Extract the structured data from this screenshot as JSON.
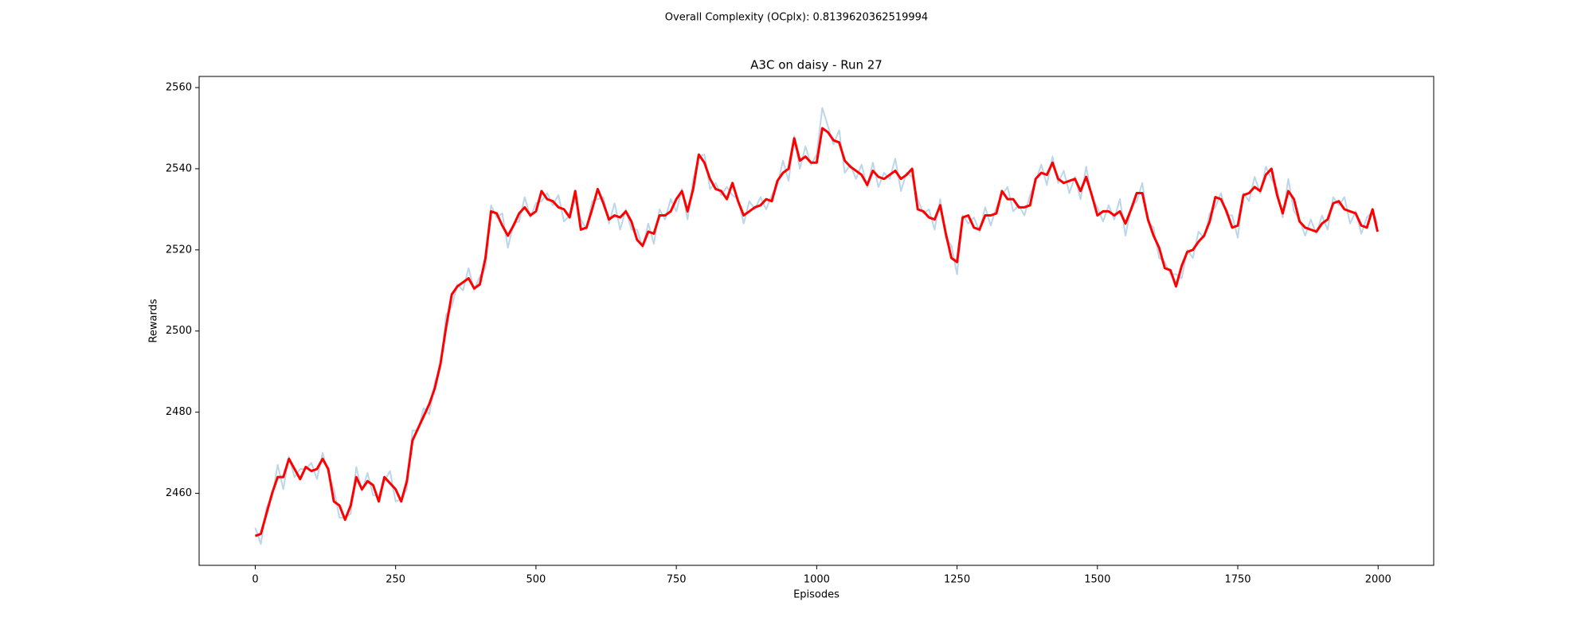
{
  "chart_data": {
    "type": "line",
    "annotation": "Overall Complexity (OCplx): 0.8139620362519994",
    "annotation_color": "#ff0000",
    "title": "A3C on daisy - Run 27",
    "x_label": "Episodes",
    "y_label": "Rewards",
    "xlim": [
      -99.95,
      2098.95
    ],
    "ylim": [
      2442.25,
      2562.75
    ],
    "xticks": [
      0,
      250,
      500,
      750,
      1000,
      1250,
      1500,
      1750,
      2000
    ],
    "yticks": [
      2460,
      2480,
      2500,
      2520,
      2540,
      2560
    ],
    "x": [
      0,
      10,
      20,
      30,
      40,
      50,
      60,
      70,
      80,
      90,
      100,
      110,
      120,
      130,
      140,
      150,
      160,
      170,
      180,
      190,
      200,
      210,
      220,
      230,
      240,
      250,
      260,
      270,
      280,
      290,
      300,
      310,
      320,
      330,
      340,
      350,
      360,
      370,
      380,
      390,
      400,
      410,
      420,
      430,
      440,
      450,
      460,
      470,
      480,
      490,
      500,
      510,
      520,
      530,
      540,
      550,
      560,
      570,
      580,
      590,
      600,
      610,
      620,
      630,
      640,
      650,
      660,
      670,
      680,
      690,
      700,
      710,
      720,
      730,
      740,
      750,
      760,
      770,
      780,
      790,
      800,
      810,
      820,
      830,
      840,
      850,
      860,
      870,
      880,
      890,
      900,
      910,
      920,
      930,
      940,
      950,
      960,
      970,
      980,
      990,
      1000,
      1010,
      1020,
      1030,
      1040,
      1050,
      1060,
      1070,
      1080,
      1090,
      1100,
      1110,
      1120,
      1130,
      1140,
      1150,
      1160,
      1170,
      1180,
      1190,
      1200,
      1210,
      1220,
      1230,
      1240,
      1250,
      1260,
      1270,
      1280,
      1290,
      1300,
      1310,
      1320,
      1330,
      1340,
      1350,
      1360,
      1370,
      1380,
      1390,
      1400,
      1410,
      1420,
      1430,
      1440,
      1450,
      1460,
      1470,
      1480,
      1490,
      1500,
      1510,
      1520,
      1530,
      1540,
      1550,
      1560,
      1570,
      1580,
      1590,
      1600,
      1610,
      1620,
      1630,
      1640,
      1650,
      1660,
      1670,
      1680,
      1690,
      1700,
      1710,
      1720,
      1730,
      1740,
      1750,
      1760,
      1770,
      1780,
      1790,
      1800,
      1810,
      1820,
      1830,
      1840,
      1850,
      1860,
      1870,
      1880,
      1890,
      1900,
      1910,
      1920,
      1930,
      1940,
      1950,
      1960,
      1970,
      1980,
      1990,
      1999
    ],
    "series": [
      {
        "color": "#1f77b4",
        "opacity": 0.3,
        "width": 2,
        "values": [
          2451.5,
          2447.5,
          2456.5,
          2459,
          2467,
          2461,
          2469,
          2464,
          2466,
          2466,
          2467.5,
          2463.5,
          2470,
          2465,
          2461,
          2454,
          2454,
          2455,
          2466.5,
          2460.5,
          2465,
          2459.5,
          2459.5,
          2463,
          2465.5,
          2458,
          2458.5,
          2461,
          2475.5,
          2475.5,
          2481,
          2479.5,
          2487.5,
          2491,
          2504,
          2506,
          2511.5,
          2510,
          2515.5,
          2510,
          2513.5,
          2515.5,
          2531,
          2528,
          2529,
          2520.5,
          2526.5,
          2527,
          2533,
          2528,
          2531.5,
          2532,
          2534,
          2531,
          2533.5,
          2527,
          2528.5,
          2532.5,
          2527.5,
          2525,
          2532,
          2532.5,
          2533,
          2526.5,
          2531.5,
          2525,
          2530,
          2525,
          2525,
          2520.5,
          2526.5,
          2521.5,
          2530,
          2527.5,
          2532.5,
          2529.5,
          2535,
          2527.5,
          2537.5,
          2543,
          2543.5,
          2535,
          2536.5,
          2533.5,
          2535.5,
          2533.5,
          2532.5,
          2526.5,
          2532,
          2530,
          2533,
          2530,
          2533.5,
          2536,
          2542,
          2537,
          2548,
          2540,
          2545.5,
          2541,
          2543.5,
          2555,
          2550.5,
          2546,
          2549.5,
          2539,
          2541,
          2537.5,
          2541,
          2535.5,
          2541.5,
          2535.5,
          2539,
          2537.5,
          2542.5,
          2534.5,
          2539,
          2538,
          2532.5,
          2529,
          2530,
          2525,
          2532.5,
          2523,
          2521,
          2514,
          2528.5,
          2526.5,
          2528,
          2524.5,
          2530.5,
          2526,
          2530.5,
          2533.5,
          2535.5,
          2529.5,
          2531,
          2528.5,
          2533.5,
          2537,
          2541,
          2536,
          2543,
          2536.5,
          2539.5,
          2534,
          2538,
          2532.5,
          2540.5,
          2533,
          2530.5,
          2527,
          2531,
          2527.5,
          2532.5,
          2523.5,
          2530.5,
          2532,
          2536.5,
          2527,
          2525.5,
          2518,
          2517,
          2514,
          2514,
          2513,
          2520,
          2518,
          2524.5,
          2523,
          2529,
          2530.5,
          2534,
          2528.5,
          2528.5,
          2523,
          2534,
          2532,
          2538,
          2534,
          2540.5,
          2537.5,
          2535,
          2528,
          2537.5,
          2529.5,
          2527.5,
          2523.5,
          2527.5,
          2524,
          2528.5,
          2525,
          2533,
          2531,
          2533,
          2526.5,
          2529.5,
          2524,
          2528,
          2529.5,
          2526.5
        ]
      },
      {
        "color": "#ff0000",
        "opacity": 1,
        "width": 3,
        "values": [
          2449.5,
          2450,
          2455,
          2460,
          2464,
          2464,
          2468.5,
          2466,
          2463.5,
          2466.5,
          2465.5,
          2466,
          2468.5,
          2466,
          2458,
          2457,
          2453.5,
          2457,
          2464,
          2461,
          2463,
          2462,
          2458,
          2464,
          2462.5,
          2461,
          2458,
          2463,
          2473,
          2476,
          2479,
          2482,
          2486,
          2492,
          2501,
          2509,
          2511,
          2512,
          2513,
          2510.5,
          2511.5,
          2518,
          2529.5,
          2529,
          2526,
          2523.5,
          2526,
          2529,
          2530.5,
          2528.5,
          2529.5,
          2534.5,
          2532.5,
          2532,
          2530.5,
          2530,
          2528,
          2534.5,
          2525,
          2525.5,
          2530,
          2535,
          2531.5,
          2527.5,
          2528.5,
          2528,
          2529.5,
          2527,
          2522.5,
          2521,
          2524.5,
          2524,
          2528.5,
          2528.5,
          2529.5,
          2532.5,
          2534.5,
          2529.5,
          2535,
          2543.5,
          2541.5,
          2537.5,
          2535,
          2534.5,
          2532.5,
          2536.5,
          2532,
          2528.5,
          2529.5,
          2530.5,
          2531,
          2532.5,
          2532,
          2537,
          2539,
          2540,
          2547.5,
          2542,
          2543,
          2541.5,
          2541.5,
          2550,
          2549,
          2547,
          2546.5,
          2542,
          2540.5,
          2539.5,
          2538.5,
          2536,
          2539.5,
          2538,
          2537.5,
          2538.5,
          2539.5,
          2537.5,
          2538.5,
          2540,
          2530,
          2529.5,
          2528,
          2527.5,
          2531,
          2524,
          2518,
          2517,
          2528,
          2528.5,
          2525.5,
          2525,
          2528.5,
          2528.5,
          2529,
          2534.5,
          2532.5,
          2532.5,
          2530.5,
          2530.5,
          2531,
          2537.5,
          2539,
          2538.5,
          2541.5,
          2537.5,
          2536.5,
          2537,
          2537.5,
          2534.5,
          2538,
          2533.5,
          2528.5,
          2529.5,
          2529.5,
          2528.5,
          2529.5,
          2526.5,
          2530,
          2534,
          2534,
          2527.5,
          2523.5,
          2520.5,
          2515.5,
          2515,
          2511,
          2516,
          2519.5,
          2520,
          2522,
          2523.5,
          2527,
          2533,
          2532.5,
          2529.5,
          2525.5,
          2526,
          2533.5,
          2534,
          2535.5,
          2534.5,
          2538.5,
          2540,
          2533.5,
          2529,
          2534.5,
          2532.5,
          2527,
          2525.5,
          2525,
          2524.5,
          2526.5,
          2527.5,
          2531.5,
          2532,
          2530,
          2529.5,
          2529,
          2526,
          2525.5,
          2530,
          2524.5
        ]
      }
    ]
  }
}
